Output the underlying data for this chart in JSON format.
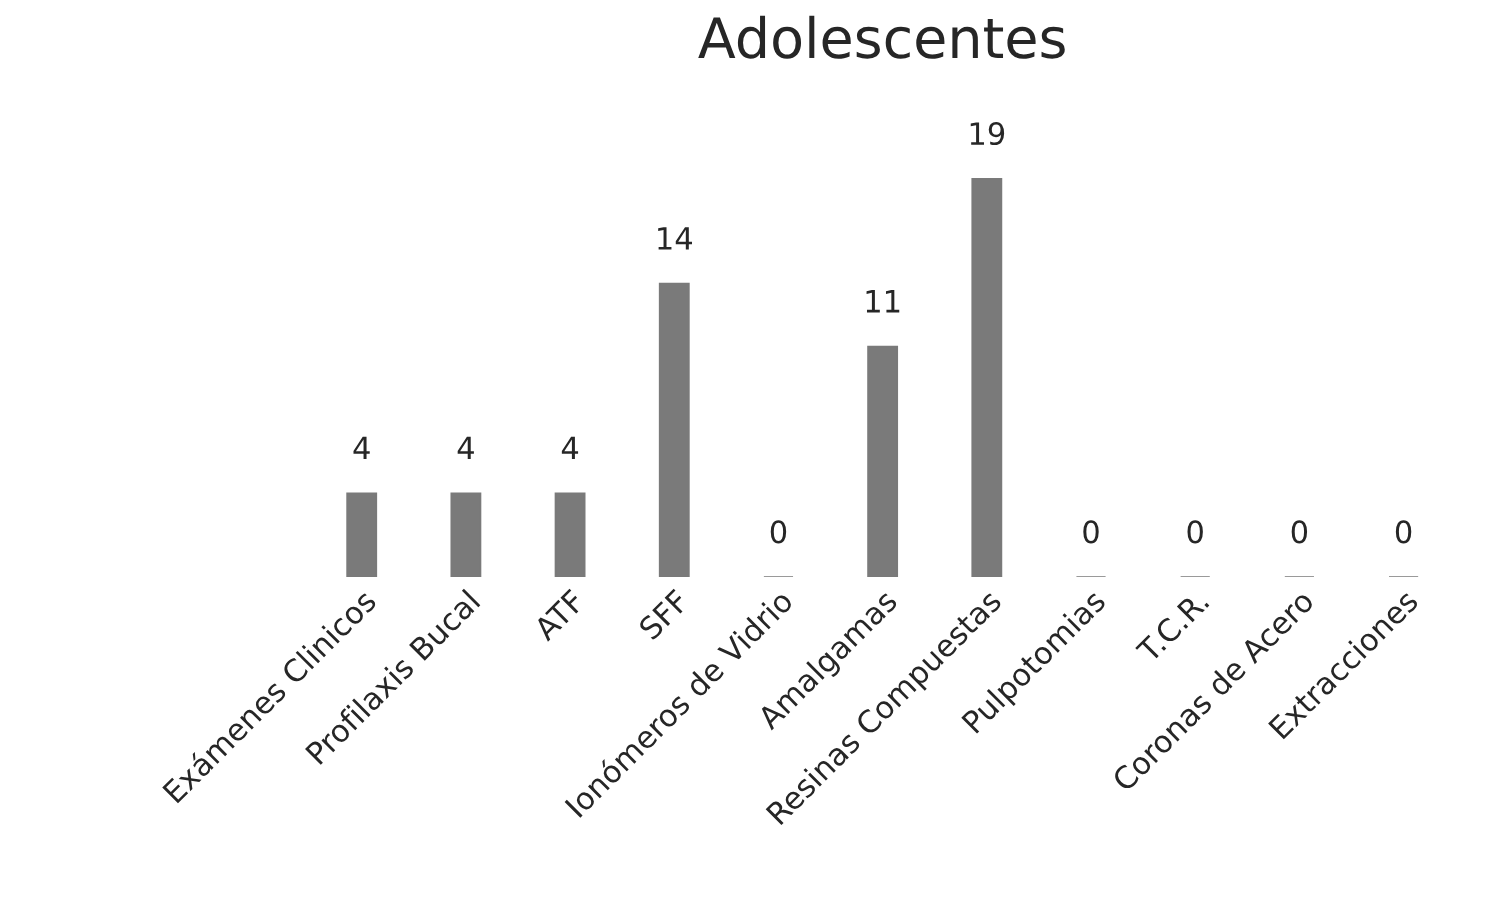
{
  "chart_data": {
    "type": "bar",
    "title": "Adolescentes",
    "categories": [
      "Exámenes Clinicos",
      "Profilaxis Bucal",
      "ATF",
      "SFF",
      "Ionómeros de Vidrio",
      "Amalgamas",
      "Resinas Compuestas",
      "Pulpotomias",
      "T.C.R.",
      "Coronas de Acero",
      "Extracciones"
    ],
    "values": [
      4,
      4,
      4,
      14,
      0,
      11,
      19,
      0,
      0,
      0,
      0
    ],
    "color": "#7a7a7a",
    "data_labels": true
  }
}
